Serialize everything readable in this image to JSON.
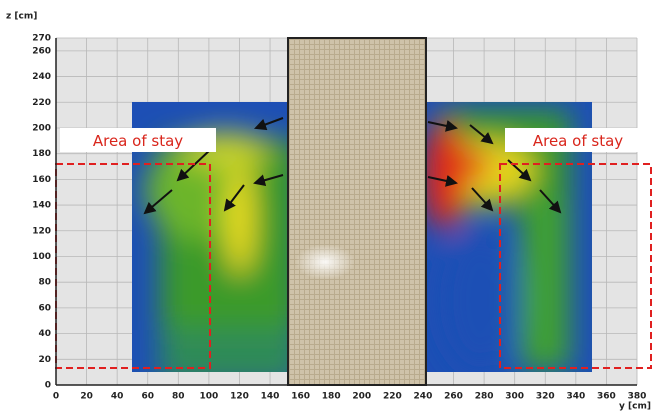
{
  "chart_data": {
    "type": "contour",
    "xlabel": "y [cm]",
    "ylabel": "z [cm]",
    "xlim": [
      0,
      380
    ],
    "ylim": [
      0,
      270
    ],
    "xticks": [
      0,
      20,
      40,
      60,
      80,
      100,
      120,
      140,
      160,
      180,
      200,
      220,
      240,
      260,
      280,
      300,
      320,
      340,
      360,
      380
    ],
    "yticks": [
      0,
      20,
      40,
      60,
      80,
      100,
      120,
      140,
      160,
      180,
      200,
      220,
      240,
      260,
      270
    ],
    "grid": true,
    "annotations": [
      "Area of stay",
      "Area of stay"
    ]
  }
}
